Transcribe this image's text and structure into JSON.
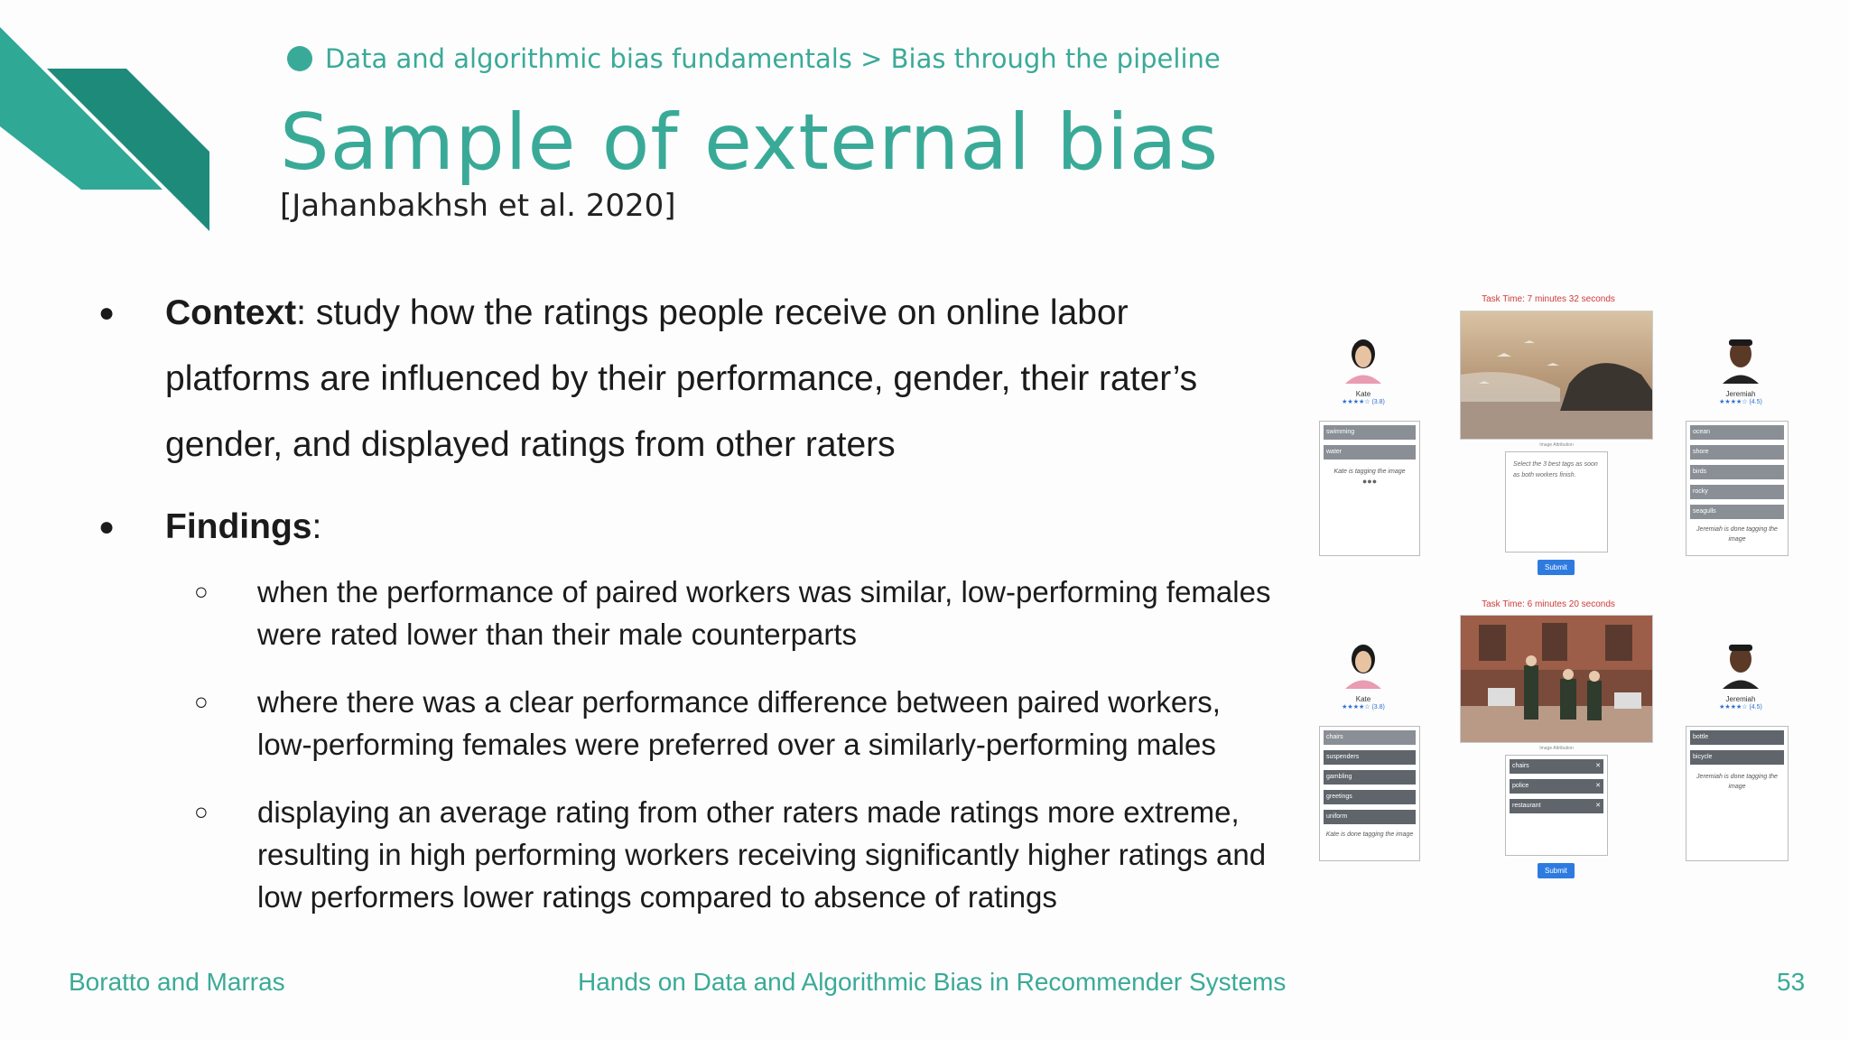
{
  "breadcrumb": "Data and algorithmic bias fundamentals > Bias through the pipeline",
  "title": "Sample of external bias",
  "citation": "[Jahanbakhsh et al. 2020]",
  "bullets": {
    "context_label": "Context",
    "context_text": ": study how the ratings people receive on online labor platforms are influenced by their performance, gender, their rater’s gender, and displayed ratings from other raters",
    "findings_label": "Findings",
    "findings_suffix": ":",
    "findings": [
      "when the performance of paired workers was similar, low-performing females were rated lower than their male counterparts",
      "where there was a clear performance difference between paired workers, low-performing females were preferred over a similarly-performing males",
      "displaying an average rating from other raters made ratings more extreme, resulting in high performing workers receiving significantly higher ratings and low performers lower ratings compared to absence of ratings"
    ]
  },
  "figure": {
    "top": {
      "task_time": "Task Time: 7 minutes 32 seconds",
      "image_caption": "Image Attribution",
      "left_person": {
        "name": "Kate",
        "stars": "★★★★☆ (3.8)",
        "tags": [
          "swimming",
          "water"
        ],
        "note": "Kate is tagging the image",
        "typing": "●●●"
      },
      "right_person": {
        "name": "Jeremiah",
        "stars": "★★★★☆ (4.5)",
        "tags": [
          "ocean",
          "shore",
          "birds",
          "rocky",
          "seagulls"
        ],
        "note": "Jeremiah is done tagging the image"
      },
      "instruction": "Select the 3 best tags as soon as both workers finish.",
      "submit": "Submit"
    },
    "bottom": {
      "task_time": "Task Time: 6 minutes 20 seconds",
      "image_caption": "Image Attribution",
      "left_person": {
        "name": "Kate",
        "stars": "★★★★☆ (3.8)",
        "tags": [
          "chairs",
          "suspenders",
          "gambling",
          "greetings",
          "uniform"
        ],
        "note": "Kate is done tagging the image"
      },
      "right_person": {
        "name": "Jeremiah",
        "stars": "★★★★☆ (4.5)",
        "tags": [
          "bottle",
          "bicycle"
        ],
        "note": "Jeremiah is done tagging the image"
      },
      "selected_tags": [
        "chairs",
        "police",
        "restaurant"
      ],
      "remove_glyph": "✕",
      "submit": "Submit"
    }
  },
  "footer": {
    "left": "Boratto and Marras",
    "center": "Hands on Data and Algorithmic Bias in Recommender Systems",
    "page": "53"
  },
  "colors": {
    "accent": "#3aaa98",
    "accent_dark": "#1e8a7a",
    "submit": "#2e7be0"
  }
}
